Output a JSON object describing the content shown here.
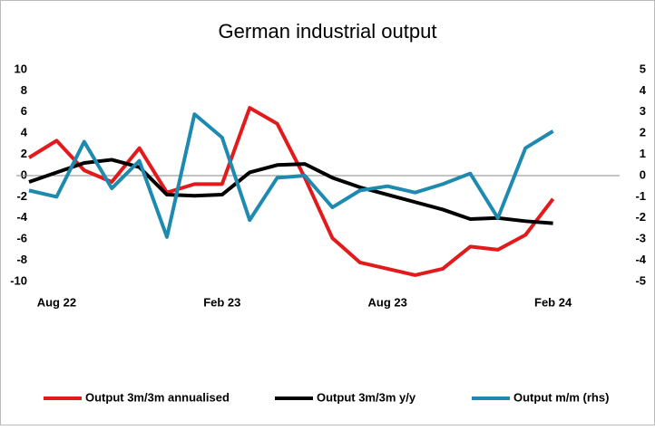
{
  "chart_data": {
    "type": "line",
    "title": "German industrial output",
    "categories": [
      null,
      "Aug 22",
      null,
      null,
      null,
      null,
      null,
      "Feb 23",
      null,
      null,
      null,
      null,
      null,
      "Aug 23",
      null,
      null,
      null,
      null,
      null,
      "Feb 24"
    ],
    "series": [
      {
        "name": "Output 3m/3m annualised",
        "color": "#e31a1c",
        "values": [
          1.7,
          3.3,
          0.5,
          -0.6,
          2.6,
          -1.6,
          -0.8,
          -0.8,
          6.4,
          4.9,
          -0.2,
          -5.9,
          -8.2,
          -8.8,
          -9.4,
          -8.8,
          -6.7,
          -7.0,
          -5.6,
          -2.2
        ]
      },
      {
        "name": "Output 3m/3m y/y",
        "color": "#000000",
        "values": [
          -0.6,
          0.3,
          1.2,
          1.5,
          0.8,
          -1.8,
          -1.9,
          -1.8,
          0.3,
          1.0,
          1.1,
          -0.2,
          -1.1,
          -1.8,
          -2.5,
          -3.2,
          -4.1,
          -4.0,
          -4.3,
          -4.5
        ]
      },
      {
        "name": "Output m/m (rhs)",
        "color": "#1f8ab0",
        "axis": "y2",
        "values": [
          -0.7,
          -1.0,
          1.6,
          -0.6,
          0.7,
          -2.9,
          2.9,
          1.8,
          -2.1,
          -0.1,
          0.0,
          -1.5,
          -0.7,
          -0.5,
          -0.8,
          -0.4,
          0.1,
          -2.0,
          1.3,
          2.1
        ]
      }
    ],
    "ylim": [
      -10,
      10
    ],
    "yticks": [
      -10,
      -8,
      -6,
      -4,
      -2,
      0,
      2,
      4,
      6,
      8,
      10
    ],
    "y2lim": [
      -5,
      5
    ],
    "y2ticks": [
      -5,
      -4,
      -3,
      -2,
      -1,
      0,
      1,
      2,
      3,
      4,
      5
    ],
    "legend": "bottom"
  }
}
